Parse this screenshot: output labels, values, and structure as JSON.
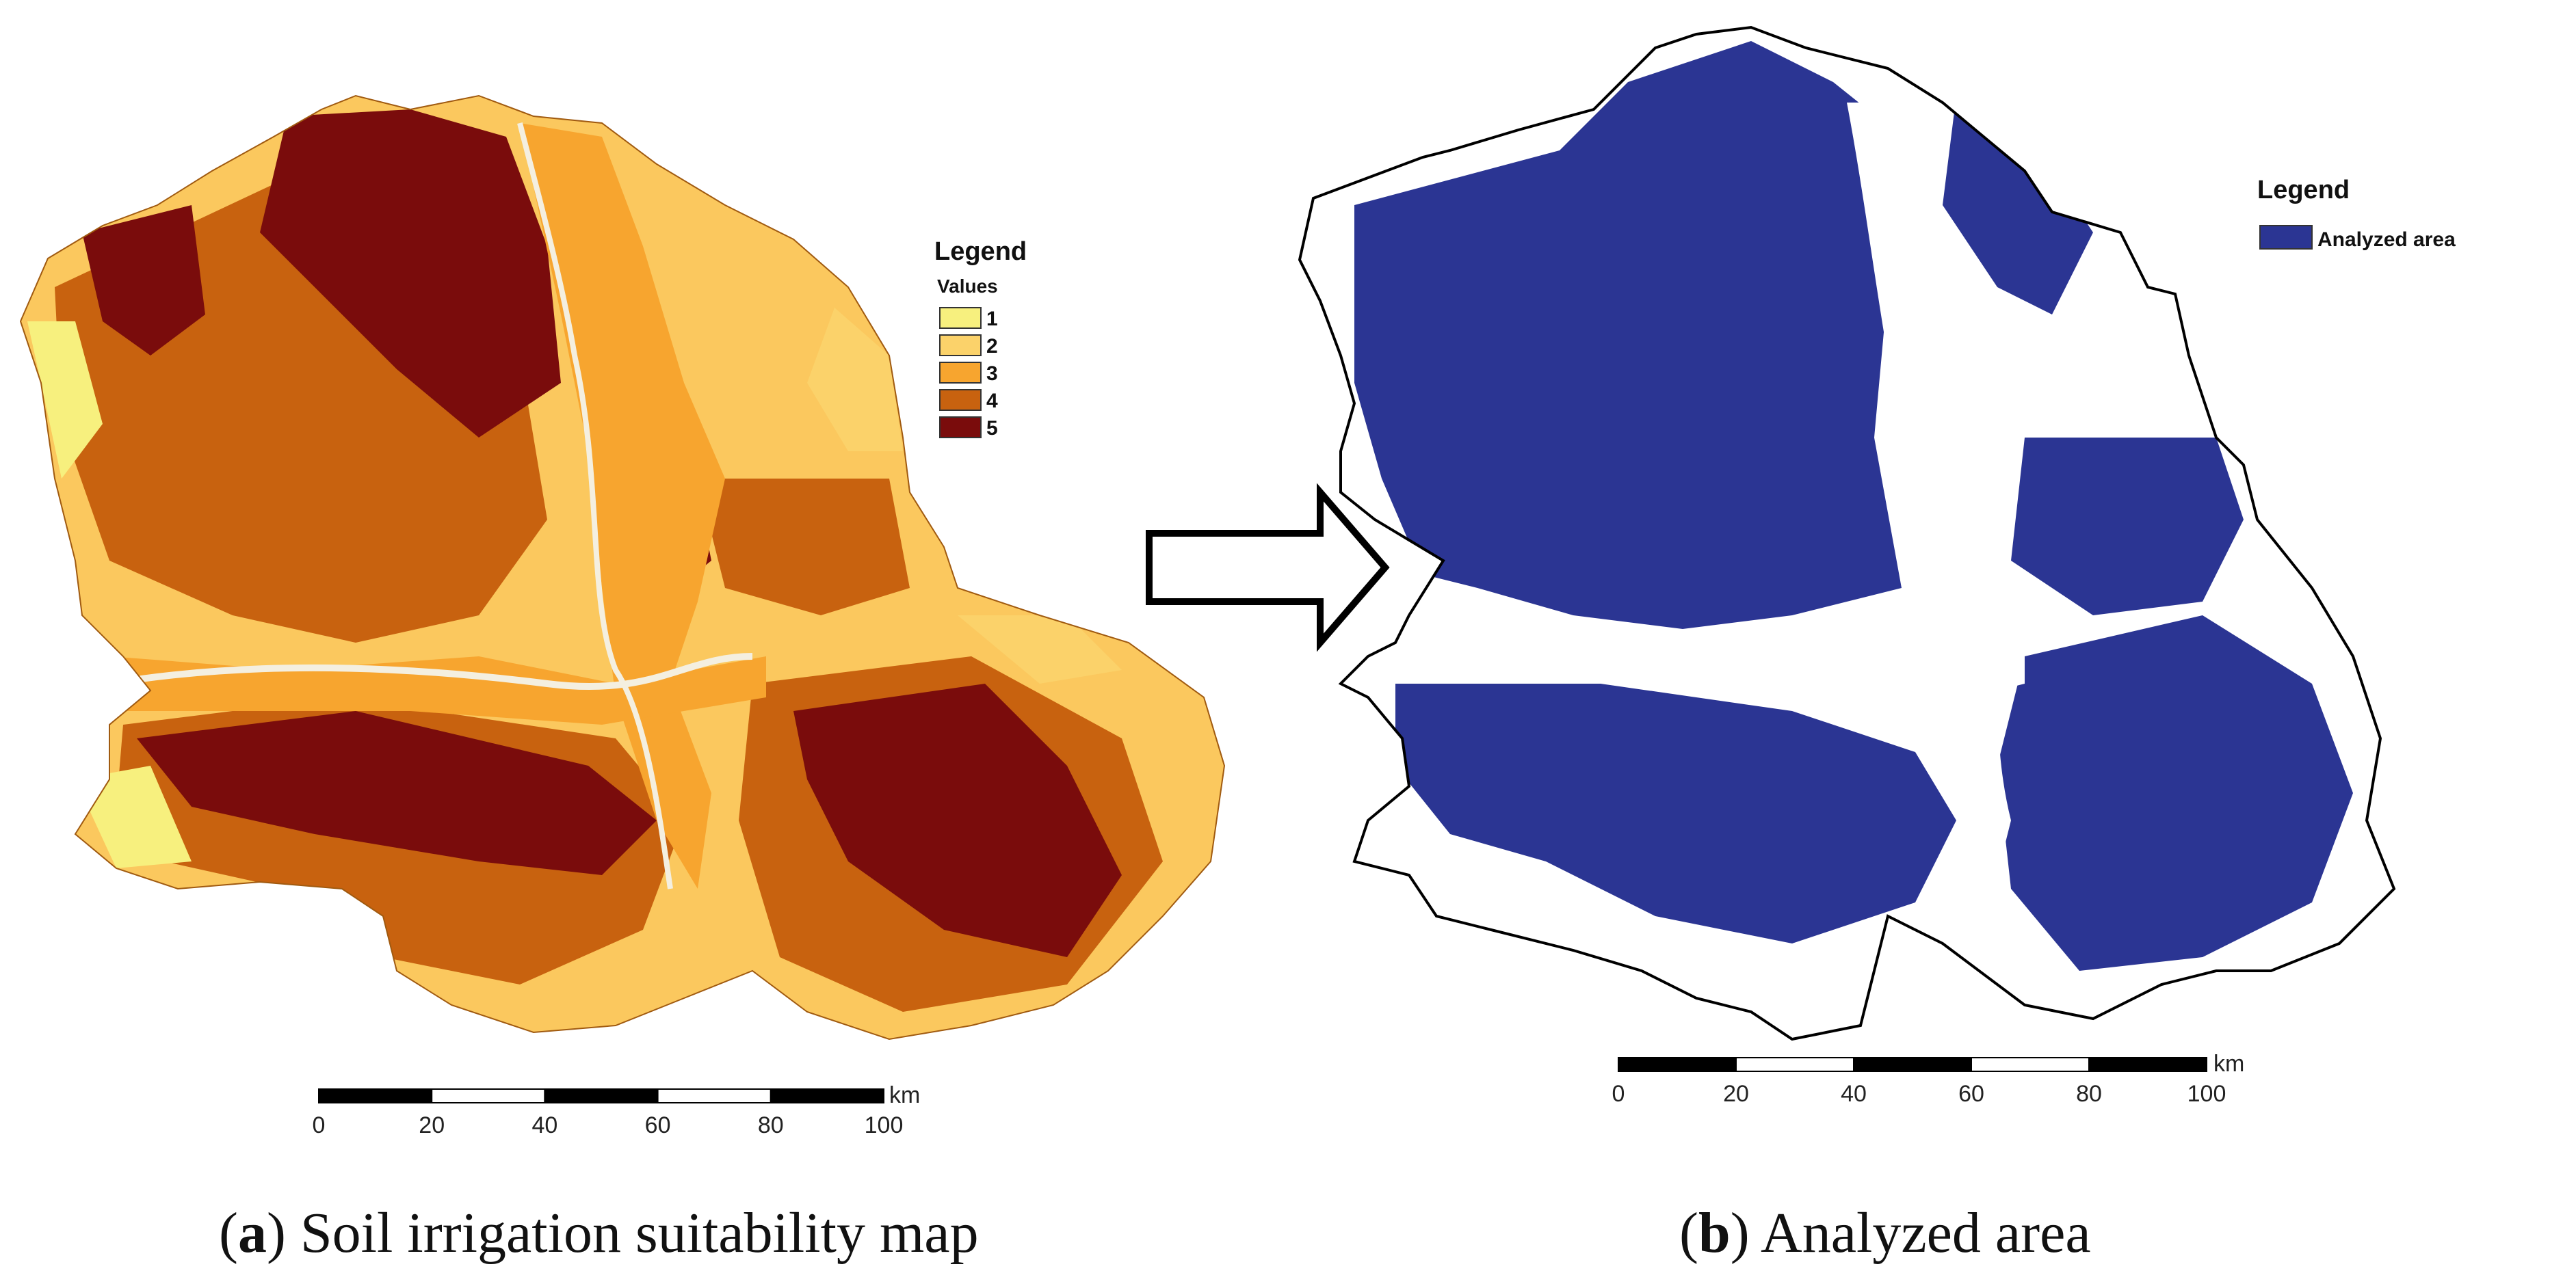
{
  "panels": [
    {
      "id": "a",
      "caption_letter": "a",
      "caption_text": "Soil irrigation suitability map",
      "legend": {
        "title": "Legend",
        "subtitle": "Values",
        "items": [
          {
            "label": "1",
            "color": "#f7f07e"
          },
          {
            "label": "2",
            "color": "#fbd26a"
          },
          {
            "label": "3",
            "color": "#f7a52f"
          },
          {
            "label": "4",
            "color": "#c8620f"
          },
          {
            "label": "5",
            "color": "#7a0c0c"
          }
        ]
      },
      "scalebar": {
        "unit": "km",
        "ticks": [
          "0",
          "20",
          "40",
          "60",
          "80",
          "100"
        ]
      }
    },
    {
      "id": "b",
      "caption_letter": "b",
      "caption_text": "Analyzed area",
      "legend": {
        "title": "Legend",
        "items": [
          {
            "label": "Analyzed area",
            "color": "#2b3593"
          }
        ]
      },
      "scalebar": {
        "unit": "km",
        "ticks": [
          "0",
          "20",
          "40",
          "60",
          "80",
          "100"
        ]
      }
    }
  ],
  "arrow": {
    "icon": "right-arrow-icon"
  }
}
